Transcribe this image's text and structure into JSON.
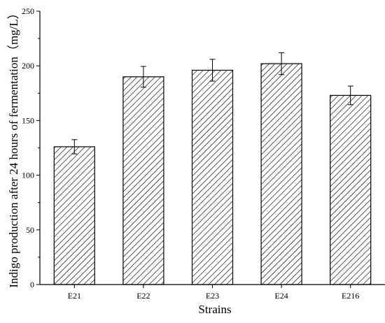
{
  "chart_data": {
    "type": "bar",
    "title": "",
    "xlabel": "Strains",
    "ylabel": "Indigo production after 24 hours of fermentation（mg/L）",
    "categories": [
      "E21",
      "E22",
      "E23",
      "E24",
      "E216"
    ],
    "values": [
      126,
      190,
      196,
      202,
      173
    ],
    "errors": [
      6.5,
      9.5,
      10,
      10,
      8.5
    ],
    "ylim": [
      0,
      250
    ],
    "yticks": [
      0,
      50,
      100,
      150,
      200,
      250
    ],
    "ytick_labels": [
      "0",
      "50",
      "100",
      "150",
      "200",
      "250"
    ],
    "grid": false,
    "legend": "none",
    "bar_fill": "hatched",
    "colors": {
      "bar_edge": "#000000",
      "hatch": "#000000",
      "background": "#ffffff"
    }
  }
}
